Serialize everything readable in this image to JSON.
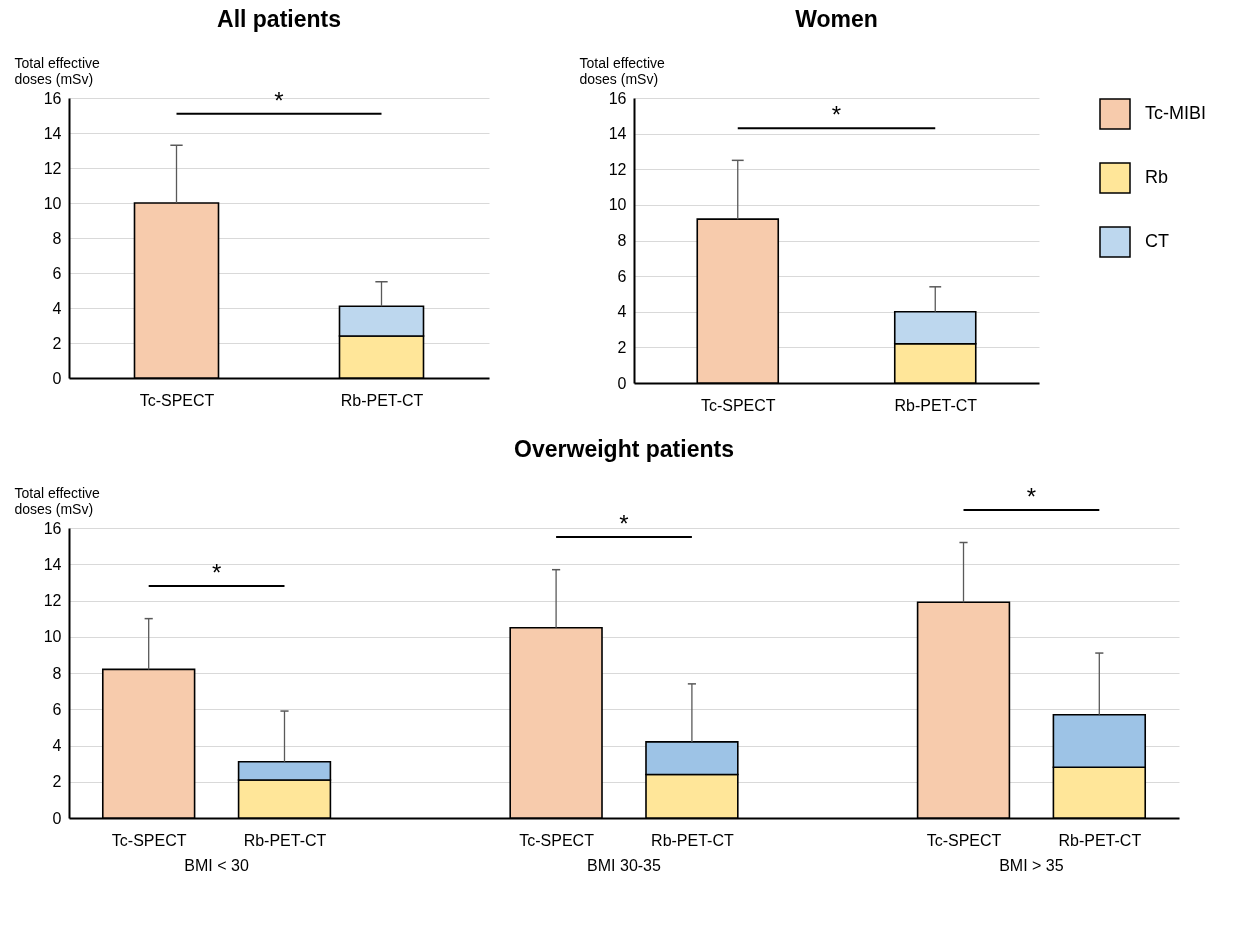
{
  "chart_data": [
    {
      "type": "bar",
      "title": "All patients",
      "ylabel": "Total effective doses (mSv)",
      "categories": [
        "Tc-SPECT",
        "Rb-PET-CT"
      ],
      "stacked": true,
      "series": [
        {
          "name": "Tc-MIBI",
          "color": "#f7cbac",
          "values": [
            10.0,
            null
          ],
          "errors": [
            [
              10.0,
              13.3
            ],
            null
          ]
        },
        {
          "name": "Rb",
          "color": "#ffe699",
          "values": [
            null,
            2.4
          ]
        },
        {
          "name": "CT",
          "color": "#bdd7ee",
          "values": [
            null,
            1.7
          ],
          "errors": [
            null,
            [
              4.1,
              5.5
            ]
          ]
        }
      ],
      "ylim": [
        0,
        16
      ],
      "yticks": [
        0,
        2,
        4,
        6,
        8,
        10,
        12,
        14,
        16
      ],
      "grid": "y",
      "legend": "right",
      "annotations": [
        "*"
      ]
    },
    {
      "type": "bar",
      "title": "Women",
      "ylabel": "Total effective doses (mSv)",
      "categories": [
        "Tc-SPECT",
        "Rb-PET-CT"
      ],
      "stacked": true,
      "series": [
        {
          "name": "Tc-MIBI",
          "color": "#f7cbac",
          "values": [
            9.2,
            null
          ],
          "errors": [
            [
              9.2,
              12.5
            ],
            null
          ]
        },
        {
          "name": "Rb",
          "color": "#ffe699",
          "values": [
            null,
            2.2
          ]
        },
        {
          "name": "CT",
          "color": "#bdd7ee",
          "values": [
            null,
            1.8
          ],
          "errors": [
            null,
            [
              4.0,
              5.4
            ]
          ]
        }
      ],
      "ylim": [
        0,
        16
      ],
      "yticks": [
        0,
        2,
        4,
        6,
        8,
        10,
        12,
        14,
        16
      ],
      "grid": "y",
      "legend": "right",
      "annotations": [
        "*"
      ]
    },
    {
      "type": "bar",
      "title": "Overweight patients",
      "ylabel": "Total effective doses (mSv)",
      "categories": [
        "Tc-SPECT",
        "Rb-PET-CT",
        "Tc-SPECT",
        "Rb-PET-CT",
        "Tc-SPECT",
        "Rb-PET-CT"
      ],
      "stacked": true,
      "series": [
        {
          "color": "#f7cbac",
          "values": [
            8.2,
            null,
            10.5,
            null,
            11.9,
            null
          ],
          "errors": [
            [
              8.2,
              11.0
            ],
            null,
            [
              10.5,
              13.7
            ],
            null,
            [
              11.9,
              15.2
            ],
            null
          ]
        },
        {
          "color": "#ffe699",
          "values": [
            null,
            2.1,
            null,
            2.4,
            null,
            2.8
          ]
        },
        {
          "color": "#9dc3e6",
          "values": [
            null,
            1.0,
            null,
            1.8,
            null,
            2.9
          ],
          "errors": [
            null,
            [
              3.1,
              5.9
            ],
            null,
            [
              4.2,
              7.4
            ],
            null,
            [
              5.7,
              9.1
            ]
          ]
        }
      ],
      "ylim": [
        0,
        16
      ],
      "yticks": [
        0,
        2,
        4,
        6,
        8,
        10,
        12,
        14,
        16
      ],
      "grid": "y",
      "annotations": [
        "*",
        "*",
        "*",
        "BMI < 30",
        "BMI 30-35",
        "BMI > 35"
      ]
    }
  ]
}
